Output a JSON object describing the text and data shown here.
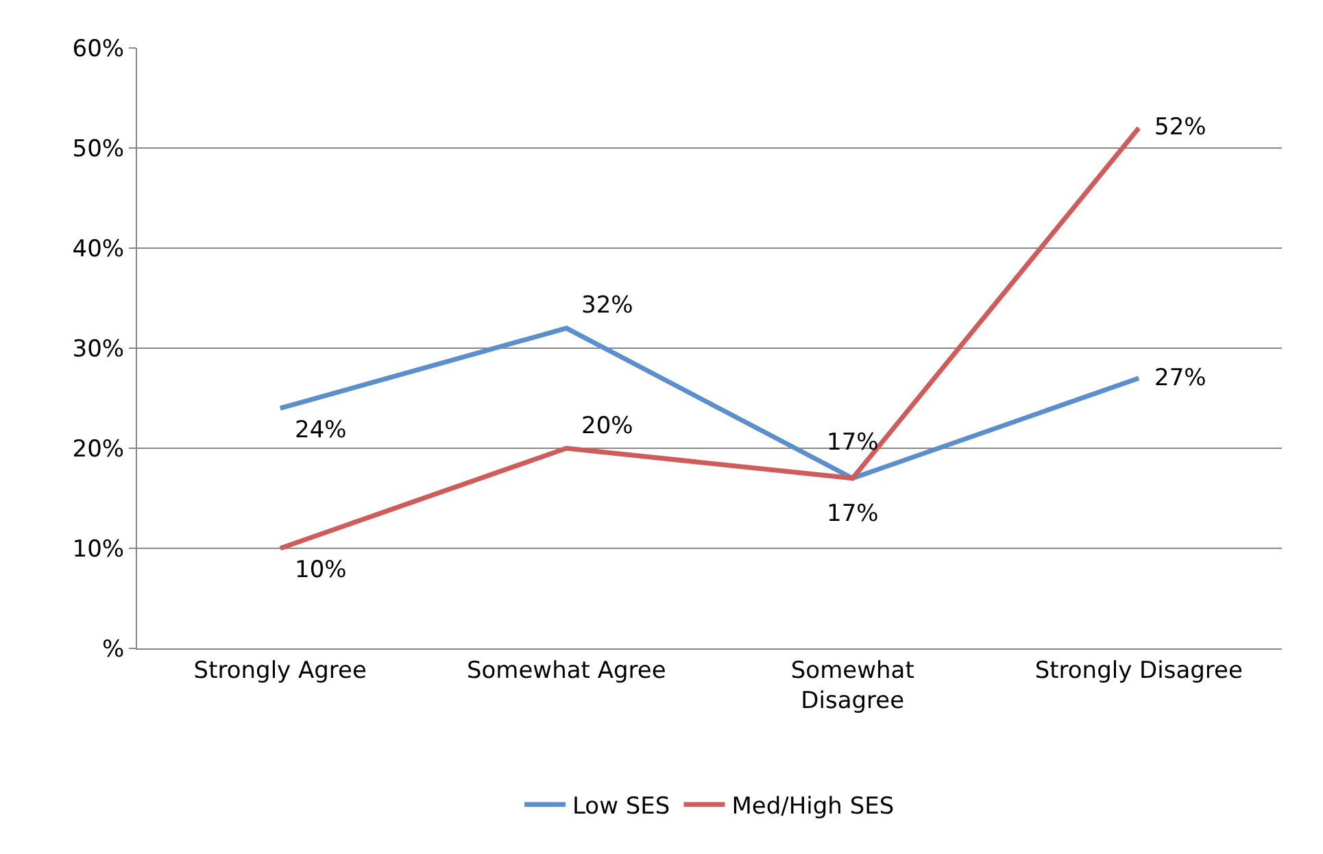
{
  "chart_data": {
    "type": "line",
    "categories": [
      "Strongly Agree",
      "Somewhat Agree",
      "Somewhat\nDisagree",
      "Strongly Disagree"
    ],
    "series": [
      {
        "name": "Low SES",
        "color": "#5b8fcb",
        "values": [
          24,
          32,
          17,
          27
        ],
        "value_labels": [
          "24%",
          "32%",
          "17%",
          "27%"
        ]
      },
      {
        "name": "Med/High SES",
        "color": "#cd5c5a",
        "values": [
          10,
          20,
          17,
          52
        ],
        "value_labels": [
          "10%",
          "20%",
          "17%",
          "52%"
        ]
      }
    ],
    "ylim": [
      0,
      60
    ],
    "yticks": [
      {
        "value": 0,
        "label": "%"
      },
      {
        "value": 10,
        "label": "10%"
      },
      {
        "value": 20,
        "label": "20%"
      },
      {
        "value": 30,
        "label": "30%"
      },
      {
        "value": 40,
        "label": "40%"
      },
      {
        "value": 50,
        "label": "50%"
      },
      {
        "value": 60,
        "label": "60%"
      }
    ],
    "grid": "y",
    "legend": "bottom",
    "marker": "none",
    "line_style": "solid"
  }
}
